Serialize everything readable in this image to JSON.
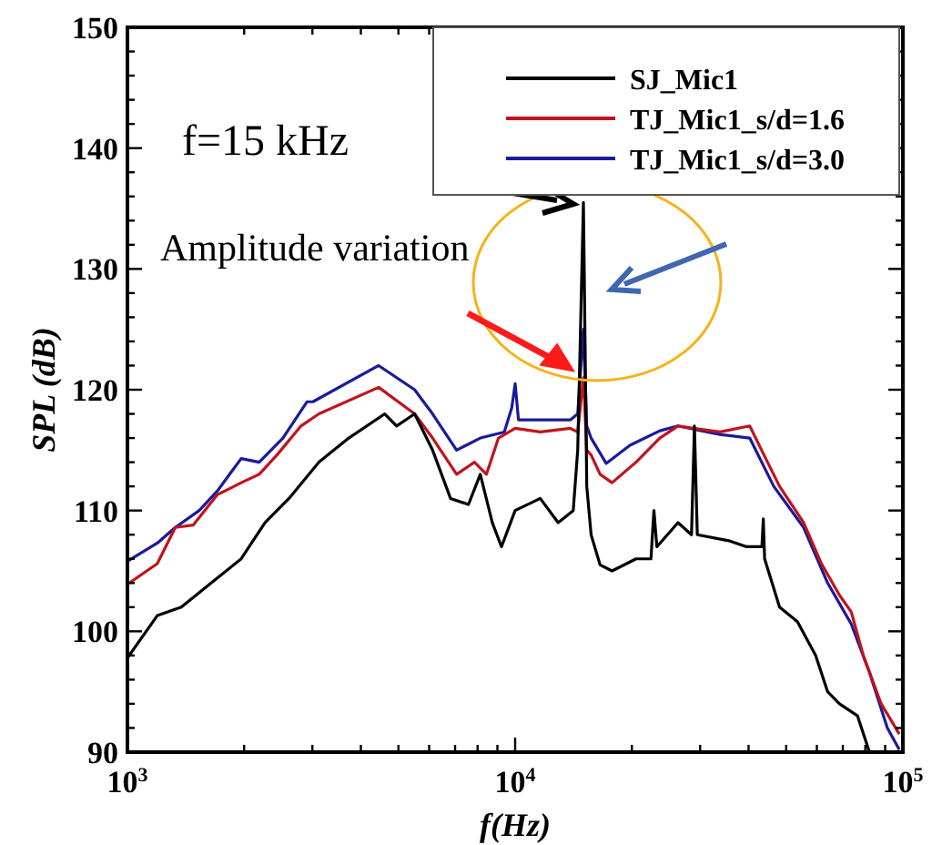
{
  "chart_data": {
    "type": "line",
    "xlabel": "f(Hz)",
    "ylabel": "SPL (dB)",
    "log": "x",
    "grid": false,
    "legend": "top right",
    "line_style": "solid",
    "marker": "none",
    "xlim": [
      1000,
      100000
    ],
    "ylim": [
      90,
      150
    ],
    "xticks": [
      {
        "value": 1000,
        "label": "10$^{3}$"
      },
      {
        "value": 2000,
        "label": null
      },
      {
        "value": 3000,
        "label": null
      },
      {
        "value": 4000,
        "label": null
      },
      {
        "value": 5000,
        "label": null
      },
      {
        "value": 6000,
        "label": null
      },
      {
        "value": 7000,
        "label": null
      },
      {
        "value": 8000,
        "label": null
      },
      {
        "value": 9000,
        "label": null
      },
      {
        "value": 10000,
        "label": "10$^{4}$"
      },
      {
        "value": 20000,
        "label": null
      },
      {
        "value": 30000,
        "label": null
      },
      {
        "value": 40000,
        "label": null
      },
      {
        "value": 50000,
        "label": null
      },
      {
        "value": 60000,
        "label": null
      },
      {
        "value": 70000,
        "label": null
      },
      {
        "value": 80000,
        "label": null
      },
      {
        "value": 90000,
        "label": null
      },
      {
        "value": 100000,
        "label": "10$^{5}$"
      }
    ],
    "yticks": [
      90,
      {
        "value": 92,
        "label": null
      },
      {
        "value": 94,
        "label": null
      },
      {
        "value": 96,
        "label": null
      },
      {
        "value": 98,
        "label": null
      },
      100,
      {
        "value": 102,
        "label": null
      },
      {
        "value": 104,
        "label": null
      },
      {
        "value": 106,
        "label": null
      },
      {
        "value": 108,
        "label": null
      },
      110,
      {
        "value": 112,
        "label": null
      },
      {
        "value": 114,
        "label": null
      },
      {
        "value": 116,
        "label": null
      },
      {
        "value": 118,
        "label": null
      },
      120,
      {
        "value": 122,
        "label": null
      },
      {
        "value": 124,
        "label": null
      },
      {
        "value": 126,
        "label": null
      },
      {
        "value": 128,
        "label": null
      },
      130,
      {
        "value": 132,
        "label": null
      },
      {
        "value": 134,
        "label": null
      },
      {
        "value": 136,
        "label": null
      },
      {
        "value": 138,
        "label": null
      },
      140,
      {
        "value": 142,
        "label": null
      },
      {
        "value": 144,
        "label": null
      },
      {
        "value": 146,
        "label": null
      },
      {
        "value": 148,
        "label": null
      },
      150
    ],
    "annotations": [
      "f=15 kHz",
      "Amplitude variation"
    ],
    "series": [
      {
        "name": "SJ_Mic1",
        "color": "#000000",
        "x": [
          1000,
          1194,
          1377,
          1644,
          1965,
          2265,
          2610,
          3118,
          3723,
          4610,
          4946,
          5505,
          6124,
          6813,
          7580,
          8130,
          8730,
          9220,
          10000,
          11610,
          12910,
          14120,
          14500,
          15000,
          15300,
          15700,
          16560,
          17780,
          20500,
          22400,
          22800,
          23200,
          26300,
          28500,
          29000,
          29500,
          35560,
          39540,
          43300,
          43650,
          44000,
          48080,
          53460,
          59560,
          63970,
          68600,
          76380,
          82000
        ],
        "values": [
          97.8,
          101.3,
          102,
          104,
          106,
          109,
          111,
          114,
          116,
          118,
          117,
          118,
          115,
          111,
          110.5,
          113,
          109,
          107,
          110,
          111,
          109,
          110,
          115,
          135.5,
          112,
          108,
          105.5,
          105,
          106,
          106,
          110,
          107,
          109,
          108,
          117,
          108,
          107.5,
          107,
          107,
          109.3,
          106,
          102,
          100.8,
          98,
          95,
          94,
          93,
          90
        ]
      },
      {
        "name": "TJ_Mic1_s/d=1.6",
        "color": "#c0141c",
        "x": [
          1000,
          1194,
          1329,
          1479,
          1704,
          1965,
          2187,
          2431,
          2803,
          3118,
          4446,
          5505,
          6124,
          7063,
          7853,
          8433,
          9057,
          10000,
          11610,
          13870,
          14500,
          15000,
          15300,
          15700,
          16560,
          17780,
          20500,
          23610,
          26300,
          33730,
          40270,
          44770,
          48080,
          55460,
          61660,
          68600,
          73620,
          79070,
          87900,
          97900
        ],
        "values": [
          103.9,
          105.6,
          108.6,
          108.8,
          111.3,
          112.3,
          113,
          114.6,
          117,
          118,
          120.2,
          118,
          116,
          113,
          114,
          113,
          116,
          116.8,
          116.5,
          116.8,
          116.5,
          121,
          115,
          114.6,
          113,
          112.3,
          114,
          116,
          117,
          116.5,
          117,
          114,
          112,
          109,
          105.6,
          103,
          101.6,
          98,
          94,
          91.5
        ]
      },
      {
        "name": "TJ_Mic1_s/d=3.0",
        "color": "#1a1a9c",
        "x": [
          1000,
          1194,
          1329,
          1532,
          1704,
          1965,
          2187,
          2518,
          2904,
          3008,
          4446,
          5505,
          6124,
          7063,
          8130,
          9376,
          9800,
          10000,
          10200,
          10810,
          13870,
          14500,
          15000,
          15300,
          15700,
          17170,
          19780,
          23610,
          26300,
          33730,
          40270,
          46450,
          55460,
          63970,
          73620,
          82000,
          91200,
          97900
        ],
        "values": [
          105.8,
          107.3,
          108.6,
          110,
          111.6,
          114.3,
          114,
          116,
          119,
          119,
          122,
          120,
          118,
          115,
          116,
          116.5,
          118.5,
          120.5,
          117.5,
          117.5,
          117.5,
          118,
          125,
          117,
          116,
          113.9,
          115.4,
          116.6,
          117,
          116.3,
          116,
          112,
          108.6,
          104,
          100.6,
          96.6,
          92,
          90.2
        ]
      }
    ]
  }
}
